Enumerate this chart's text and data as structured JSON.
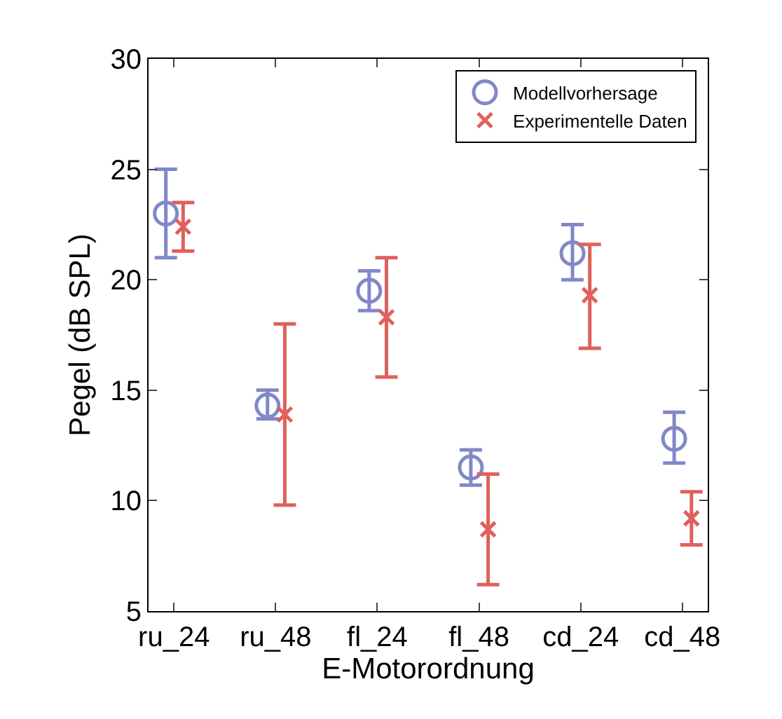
{
  "chart_data": {
    "type": "scatter",
    "xlabel": "E-Motorordnung",
    "ylabel": "Pegel (dB SPL)",
    "categories": [
      "ru_24",
      "ru_48",
      "fl_24",
      "fl_48",
      "cd_24",
      "cd_48"
    ],
    "series": [
      {
        "name": "Modellvorhersage",
        "color": "#8088c8",
        "marker": "circle",
        "values": [
          23.0,
          14.3,
          19.5,
          11.5,
          21.2,
          12.8
        ],
        "errors": [
          [
            21.0,
            25.0
          ],
          [
            13.7,
            15.0
          ],
          [
            18.6,
            20.4
          ],
          [
            10.7,
            12.3
          ],
          [
            20.0,
            22.5
          ],
          [
            11.7,
            14.0
          ]
        ]
      },
      {
        "name": "Experimentelle Daten",
        "color": "#e0605c",
        "marker": "cross",
        "values": [
          22.4,
          13.9,
          18.3,
          8.7,
          19.3,
          9.2
        ],
        "errors": [
          [
            21.3,
            23.5
          ],
          [
            9.8,
            18.0
          ],
          [
            15.6,
            21.0
          ],
          [
            6.2,
            11.2
          ],
          [
            16.9,
            21.6
          ],
          [
            8.0,
            10.4
          ]
        ]
      }
    ],
    "ylim": [
      5,
      30
    ],
    "yticks": [
      5,
      10,
      15,
      20,
      25,
      30
    ],
    "legend": "top right"
  }
}
